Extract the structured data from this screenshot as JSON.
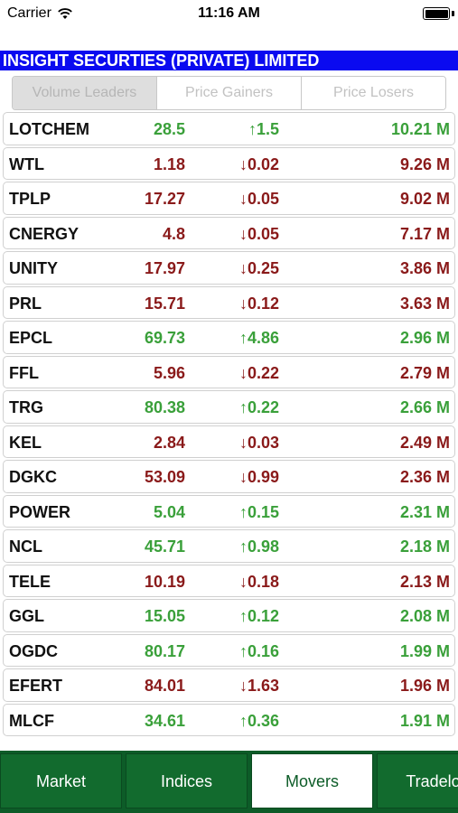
{
  "status": {
    "carrier": "Carrier",
    "time": "11:16 AM"
  },
  "header": {
    "company": "INSIGHT SECURTIES (PRIVATE) LIMITED"
  },
  "segments": [
    {
      "label": "Volume Leaders",
      "active": true
    },
    {
      "label": "Price Gainers",
      "active": false
    },
    {
      "label": "Price Losers",
      "active": false
    }
  ],
  "colors": {
    "up": "#3aa03a",
    "down": "#8a1a1a",
    "header_bg": "#0a0af0",
    "tab_bg": "#0d5c28"
  },
  "rows": [
    {
      "symbol": "LOTCHEM",
      "price": "28.5",
      "change": "↑1.5",
      "volume": "10.21 M",
      "dir": "up"
    },
    {
      "symbol": "WTL",
      "price": "1.18",
      "change": "↓0.02",
      "volume": "9.26 M",
      "dir": "down"
    },
    {
      "symbol": "TPLP",
      "price": "17.27",
      "change": "↓0.05",
      "volume": "9.02 M",
      "dir": "down"
    },
    {
      "symbol": "CNERGY",
      "price": "4.8",
      "change": "↓0.05",
      "volume": "7.17 M",
      "dir": "down"
    },
    {
      "symbol": "UNITY",
      "price": "17.97",
      "change": "↓0.25",
      "volume": "3.86 M",
      "dir": "down"
    },
    {
      "symbol": "PRL",
      "price": "15.71",
      "change": "↓0.12",
      "volume": "3.63 M",
      "dir": "down"
    },
    {
      "symbol": "EPCL",
      "price": "69.73",
      "change": "↑4.86",
      "volume": "2.96 M",
      "dir": "up"
    },
    {
      "symbol": "FFL",
      "price": "5.96",
      "change": "↓0.22",
      "volume": "2.79 M",
      "dir": "down"
    },
    {
      "symbol": "TRG",
      "price": "80.38",
      "change": "↑0.22",
      "volume": "2.66 M",
      "dir": "up"
    },
    {
      "symbol": "KEL",
      "price": "2.84",
      "change": "↓0.03",
      "volume": "2.49 M",
      "dir": "down"
    },
    {
      "symbol": "DGKC",
      "price": "53.09",
      "change": "↓0.99",
      "volume": "2.36 M",
      "dir": "down"
    },
    {
      "symbol": "POWER",
      "price": "5.04",
      "change": "↑0.15",
      "volume": "2.31 M",
      "dir": "up"
    },
    {
      "symbol": "NCL",
      "price": "45.71",
      "change": "↑0.98",
      "volume": "2.18 M",
      "dir": "up"
    },
    {
      "symbol": "TELE",
      "price": "10.19",
      "change": "↓0.18",
      "volume": "2.13 M",
      "dir": "down"
    },
    {
      "symbol": "GGL",
      "price": "15.05",
      "change": "↑0.12",
      "volume": "2.08 M",
      "dir": "up"
    },
    {
      "symbol": "OGDC",
      "price": "80.17",
      "change": "↑0.16",
      "volume": "1.99 M",
      "dir": "up"
    },
    {
      "symbol": "EFERT",
      "price": "84.01",
      "change": "↓1.63",
      "volume": "1.96 M",
      "dir": "down"
    },
    {
      "symbol": "MLCF",
      "price": "34.61",
      "change": "↑0.36",
      "volume": "1.91 M",
      "dir": "up"
    }
  ],
  "tabs": [
    {
      "label": "Market",
      "active": false
    },
    {
      "label": "Indices",
      "active": false
    },
    {
      "label": "Movers",
      "active": true
    },
    {
      "label": "Tradelog",
      "active": false
    }
  ]
}
